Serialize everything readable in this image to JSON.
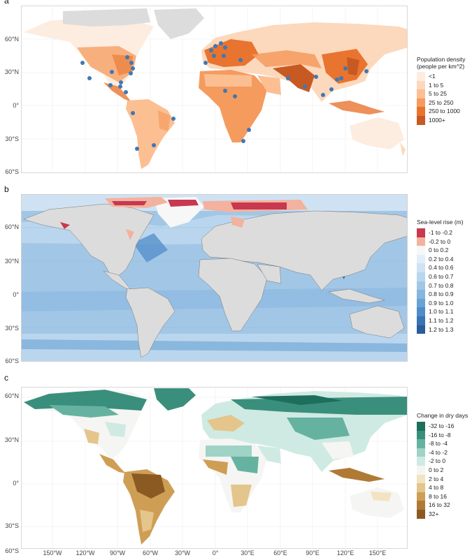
{
  "panels": [
    {
      "letter": "a",
      "legend_title_1": "Population density",
      "legend_title_2": "(people per km^2)",
      "legend": [
        {
          "label": "<1",
          "color": "#fdece0"
        },
        {
          "label": "1 to 5",
          "color": "#fcd8bc"
        },
        {
          "label": "5 to 25",
          "color": "#fbbf92"
        },
        {
          "label": "25 to 250",
          "color": "#f59b5e"
        },
        {
          "label": "250 to 1000",
          "color": "#e8742f"
        },
        {
          "label": "1000+",
          "color": "#c75a22"
        }
      ]
    },
    {
      "letter": "b",
      "legend_title_1": "Sea-level rise (m)",
      "legend": [
        {
          "label": "-1 to -0.2",
          "color": "#c8384f"
        },
        {
          "label": "-0.2 to 0",
          "color": "#f3b29e"
        },
        {
          "label": "0 to 0.2",
          "color": "#f7f7f7"
        },
        {
          "label": "0.2 to 0.4",
          "color": "#e3eef8"
        },
        {
          "label": "0.4 to 0.6",
          "color": "#cfe2f3"
        },
        {
          "label": "0.6 to 0.7",
          "color": "#bad6ee"
        },
        {
          "label": "0.7 to 0.8",
          "color": "#a2c7e6"
        },
        {
          "label": "0.8 to 0.9",
          "color": "#86b5de"
        },
        {
          "label": "0.9 to 1.0",
          "color": "#6aa2d4"
        },
        {
          "label": "1.0 to 1.1",
          "color": "#4f8cc8"
        },
        {
          "label": "1.1 to 1.2",
          "color": "#3a74b4"
        },
        {
          "label": "1.2 to 1.3",
          "color": "#2a5d9a"
        }
      ]
    },
    {
      "letter": "c",
      "legend_title_1": "Change in dry days",
      "legend": [
        {
          "label": "-32 to -16",
          "color": "#1e6e5e"
        },
        {
          "label": "-16 to -8",
          "color": "#3a8f7c"
        },
        {
          "label": "-8 to -4",
          "color": "#66b2a1"
        },
        {
          "label": "-4 to -2",
          "color": "#9fd3c6"
        },
        {
          "label": "-2 to 0",
          "color": "#cfeae3"
        },
        {
          "label": "0 to 2",
          "color": "#f5f5f3"
        },
        {
          "label": "2 to 4",
          "color": "#f2e3c2"
        },
        {
          "label": "4 to 8",
          "color": "#e4c58b"
        },
        {
          "label": "8 to 16",
          "color": "#cf9e55"
        },
        {
          "label": "16 to 32",
          "color": "#b07a35"
        },
        {
          "label": "32+",
          "color": "#8b5a22"
        }
      ]
    }
  ],
  "y_ticks": [
    "60°N",
    "30°N",
    "0°",
    "30°S",
    "60°S"
  ],
  "x_ticks": [
    "150°W",
    "120°W",
    "90°W",
    "60°W",
    "30°W",
    "0°",
    "30°E",
    "60°E",
    "90°E",
    "120°E",
    "150°E"
  ],
  "colors": {
    "land_gray": "#dcdcdc",
    "ocean_a": "#ffffff",
    "grid": "#e6e6e6",
    "city_marker": "#3f78b5",
    "border": "#666666"
  },
  "icons": [
    "city-marker-icon"
  ]
}
